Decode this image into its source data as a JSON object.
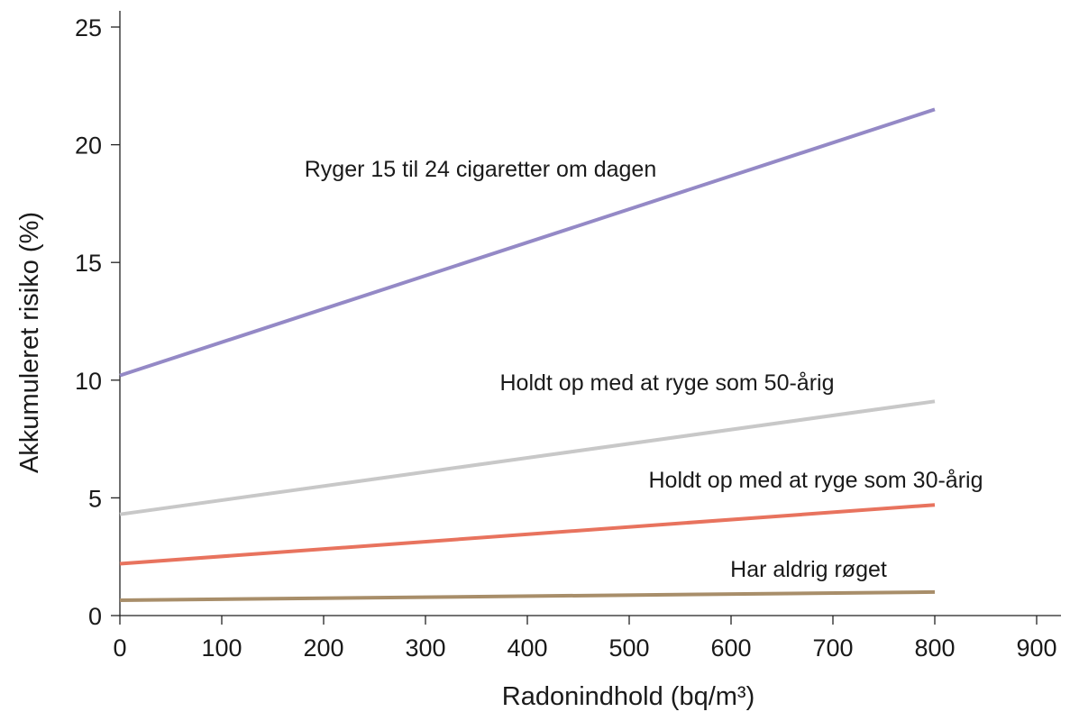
{
  "chart_data": {
    "type": "line",
    "xlabel": "Radonindhold (bq/m³)",
    "ylabel": "Akkumuleret risiko (%)",
    "xlim": [
      0,
      900
    ],
    "ylim": [
      0,
      25
    ],
    "x_ticks": [
      0,
      100,
      200,
      300,
      400,
      500,
      600,
      700,
      800,
      900
    ],
    "y_ticks": [
      0,
      5,
      10,
      15,
      20,
      25
    ],
    "grid": false,
    "series": [
      {
        "name": "Ryger 15 til 24 cigaretter om dagen",
        "color": "#9489c6",
        "x": [
          0,
          800
        ],
        "y": [
          10.2,
          21.5
        ]
      },
      {
        "name": "Holdt op med at ryge som 50-årig",
        "color": "#c8c8c8",
        "x": [
          0,
          800
        ],
        "y": [
          4.3,
          9.1
        ]
      },
      {
        "name": "Holdt op med at ryge som 30-årig",
        "color": "#e8735e",
        "x": [
          0,
          800
        ],
        "y": [
          2.2,
          4.7
        ]
      },
      {
        "name": "Har aldrig røget",
        "color": "#a88e6a",
        "x": [
          0,
          800
        ],
        "y": [
          0.65,
          1.0
        ]
      }
    ]
  }
}
